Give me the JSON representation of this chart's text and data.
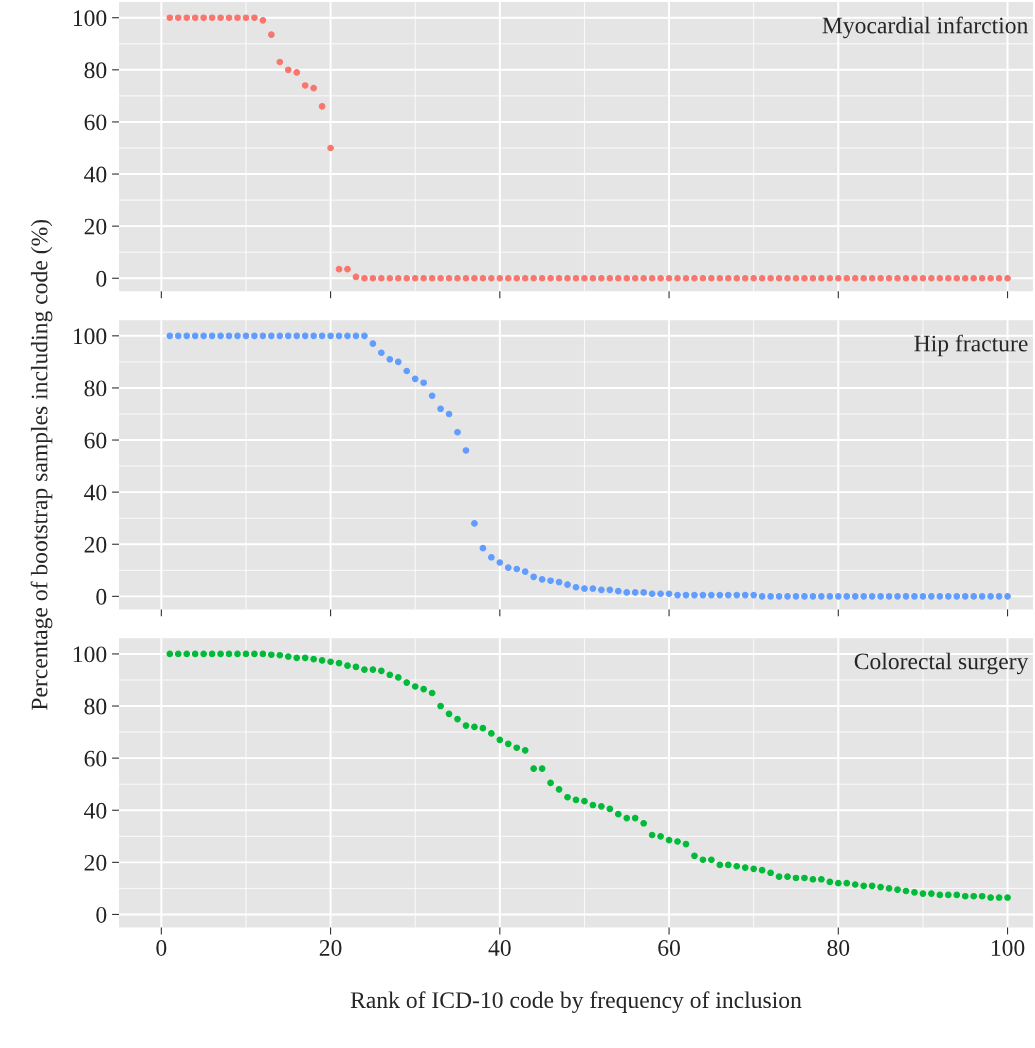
{
  "chart_data": [
    {
      "type": "scatter",
      "title": "Myocardial infarction",
      "xlim": [
        -5,
        103
      ],
      "ylim": [
        -5,
        106
      ],
      "xticks": [
        0,
        20,
        40,
        60,
        80,
        100
      ],
      "yticks": [
        0,
        20,
        40,
        60,
        80,
        100
      ],
      "grid": true,
      "marker": "circle",
      "tick_labels": "y",
      "series": [
        {
          "color": "#f8766d",
          "x": [
            1,
            2,
            3,
            4,
            5,
            6,
            7,
            8,
            9,
            10,
            11,
            12,
            13,
            14,
            15,
            16,
            17,
            18,
            19,
            20,
            21,
            22,
            23,
            24,
            25,
            26,
            27,
            28,
            29,
            30,
            31,
            32,
            33,
            34,
            35,
            36,
            37,
            38,
            39,
            40,
            41,
            42,
            43,
            44,
            45,
            46,
            47,
            48,
            49,
            50,
            51,
            52,
            53,
            54,
            55,
            56,
            57,
            58,
            59,
            60,
            61,
            62,
            63,
            64,
            65,
            66,
            67,
            68,
            69,
            70,
            71,
            72,
            73,
            74,
            75,
            76,
            77,
            78,
            79,
            80,
            81,
            82,
            83,
            84,
            85,
            86,
            87,
            88,
            89,
            90,
            91,
            92,
            93,
            94,
            95,
            96,
            97,
            98,
            99,
            100
          ],
          "values": [
            100,
            100,
            100,
            100,
            100,
            100,
            100,
            100,
            100,
            100,
            100,
            99,
            93.5,
            83,
            80,
            79,
            74,
            73,
            66,
            50,
            3.5,
            3.5,
            0.5,
            0,
            0,
            0,
            0,
            0,
            0,
            0,
            0,
            0,
            0,
            0,
            0,
            0,
            0,
            0,
            0,
            0,
            0,
            0,
            0,
            0,
            0,
            0,
            0,
            0,
            0,
            0,
            0,
            0,
            0,
            0,
            0,
            0,
            0,
            0,
            0,
            0,
            0,
            0,
            0,
            0,
            0,
            0,
            0,
            0,
            0,
            0,
            0,
            0,
            0,
            0,
            0,
            0,
            0,
            0,
            0,
            0,
            0,
            0,
            0,
            0,
            0,
            0,
            0,
            0,
            0,
            0,
            0,
            0,
            0,
            0,
            0,
            0,
            0,
            0,
            0,
            0
          ]
        }
      ]
    },
    {
      "type": "scatter",
      "title": "Hip fracture",
      "ylabel": "Percentage of bootstrap samples including code (%)",
      "xlim": [
        -5,
        103
      ],
      "ylim": [
        -5,
        106
      ],
      "xticks": [
        0,
        20,
        40,
        60,
        80,
        100
      ],
      "yticks": [
        0,
        20,
        40,
        60,
        80,
        100
      ],
      "grid": true,
      "marker": "circle",
      "tick_labels": "y",
      "series": [
        {
          "color": "#619cff",
          "x": [
            1,
            2,
            3,
            4,
            5,
            6,
            7,
            8,
            9,
            10,
            11,
            12,
            13,
            14,
            15,
            16,
            17,
            18,
            19,
            20,
            21,
            22,
            23,
            24,
            25,
            26,
            27,
            28,
            29,
            30,
            31,
            32,
            33,
            34,
            35,
            36,
            37,
            38,
            39,
            40,
            41,
            42,
            43,
            44,
            45,
            46,
            47,
            48,
            49,
            50,
            51,
            52,
            53,
            54,
            55,
            56,
            57,
            58,
            59,
            60,
            61,
            62,
            63,
            64,
            65,
            66,
            67,
            68,
            69,
            70,
            71,
            72,
            73,
            74,
            75,
            76,
            77,
            78,
            79,
            80,
            81,
            82,
            83,
            84,
            85,
            86,
            87,
            88,
            89,
            90,
            91,
            92,
            93,
            94,
            95,
            96,
            97,
            98,
            99,
            100
          ],
          "values": [
            100,
            100,
            100,
            100,
            100,
            100,
            100,
            100,
            100,
            100,
            100,
            100,
            100,
            100,
            100,
            100,
            100,
            100,
            100,
            100,
            100,
            100,
            100,
            100,
            97,
            93.5,
            91,
            90,
            86.5,
            83.5,
            82,
            77,
            72,
            70,
            63,
            56,
            28,
            18.5,
            15,
            13,
            11,
            10.5,
            9.5,
            7.5,
            6.5,
            6,
            5.5,
            4.5,
            3.5,
            3,
            3,
            2.5,
            2.5,
            2,
            1.5,
            1.5,
            1.5,
            1,
            1,
            1,
            0.5,
            0.5,
            0.5,
            0.5,
            0.5,
            0.5,
            0.5,
            0.5,
            0.5,
            0.5,
            0,
            0,
            0,
            0,
            0,
            0,
            0,
            0,
            0,
            0,
            0,
            0,
            0,
            0,
            0,
            0,
            0,
            0,
            0,
            0,
            0,
            0,
            0,
            0,
            0,
            0,
            0,
            0,
            0,
            0
          ]
        }
      ]
    },
    {
      "type": "scatter",
      "title": "Colorectal surgery",
      "xlabel": "Rank of ICD-10 code by frequency of inclusion",
      "xlim": [
        -5,
        103
      ],
      "ylim": [
        -5,
        106
      ],
      "xticks": [
        0,
        20,
        40,
        60,
        80,
        100
      ],
      "yticks": [
        0,
        20,
        40,
        60,
        80,
        100
      ],
      "grid": true,
      "marker": "circle",
      "series": [
        {
          "color": "#00ba38",
          "x": [
            1,
            2,
            3,
            4,
            5,
            6,
            7,
            8,
            9,
            10,
            11,
            12,
            13,
            14,
            15,
            16,
            17,
            18,
            19,
            20,
            21,
            22,
            23,
            24,
            25,
            26,
            27,
            28,
            29,
            30,
            31,
            32,
            33,
            34,
            35,
            36,
            37,
            38,
            39,
            40,
            41,
            42,
            43,
            44,
            45,
            46,
            47,
            48,
            49,
            50,
            51,
            52,
            53,
            54,
            55,
            56,
            57,
            58,
            59,
            60,
            61,
            62,
            63,
            64,
            65,
            66,
            67,
            68,
            69,
            70,
            71,
            72,
            73,
            74,
            75,
            76,
            77,
            78,
            79,
            80,
            81,
            82,
            83,
            84,
            85,
            86,
            87,
            88,
            89,
            90,
            91,
            92,
            93,
            94,
            95,
            96,
            97,
            98,
            99,
            100
          ],
          "values": [
            100,
            100,
            100,
            100,
            100,
            100,
            100,
            100,
            100,
            100,
            100,
            100,
            99.7,
            99.5,
            99,
            98.5,
            98.5,
            98,
            97.5,
            97,
            96.5,
            95.5,
            95,
            94,
            94,
            93.5,
            92,
            91,
            89,
            87.5,
            86.5,
            85,
            80,
            77,
            75,
            72.5,
            72,
            71.5,
            69.5,
            67,
            65.5,
            64,
            63,
            56,
            56,
            50.5,
            48,
            45,
            44,
            43.5,
            42,
            41.5,
            40.5,
            38.5,
            37,
            37,
            35,
            30.5,
            30,
            28.5,
            28,
            27,
            22.5,
            21,
            21,
            19,
            19,
            18.5,
            18,
            17.5,
            17,
            16,
            14.5,
            14.5,
            14,
            14,
            13.5,
            13.5,
            12.5,
            12,
            12,
            11.5,
            11,
            11,
            10.5,
            10,
            9.5,
            9,
            8.5,
            8,
            8,
            7.5,
            7.5,
            7.5,
            7,
            7,
            7,
            6.5,
            6.5,
            6.5
          ]
        }
      ]
    }
  ]
}
